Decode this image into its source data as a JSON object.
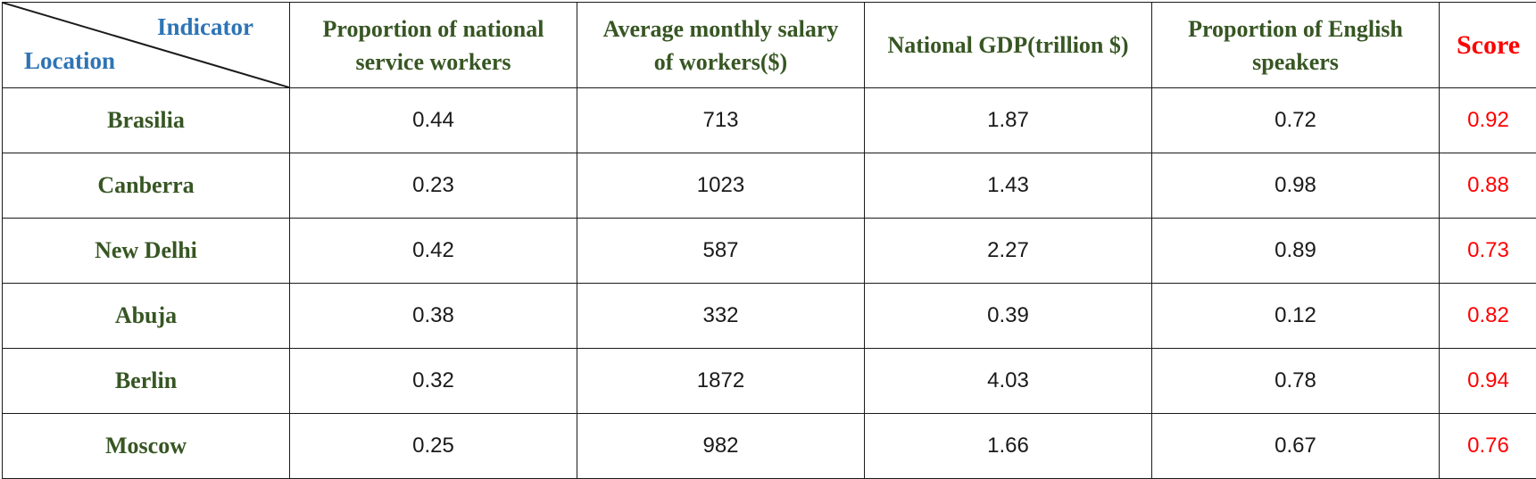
{
  "table": {
    "corner": {
      "top_label": "Indicator",
      "bottom_label": "Location"
    },
    "columns": [
      {
        "line1": "Proportion of national",
        "line2": "service workers"
      },
      {
        "line1": "Average monthly salary",
        "line2": "of workers($)"
      },
      {
        "line1": "National GDP(trillion $)",
        "line2": ""
      },
      {
        "line1": "Proportion of English",
        "line2": "speakers"
      }
    ],
    "score_header": "Score",
    "rows": [
      {
        "location": "Brasilia",
        "values": [
          "0.44",
          "713",
          "1.87",
          "0.72"
        ],
        "score": "0.92"
      },
      {
        "location": "Canberra",
        "values": [
          "0.23",
          "1023",
          "1.43",
          "0.98"
        ],
        "score": "0.88"
      },
      {
        "location": "New Delhi",
        "values": [
          "0.42",
          "587",
          "2.27",
          "0.89"
        ],
        "score": "0.73"
      },
      {
        "location": "Abuja",
        "values": [
          "0.38",
          "332",
          "0.39",
          "0.12"
        ],
        "score": "0.82"
      },
      {
        "location": "Berlin",
        "values": [
          "0.32",
          "1872",
          "4.03",
          "0.78"
        ],
        "score": "0.94"
      },
      {
        "location": "Moscow",
        "values": [
          "0.25",
          "982",
          "1.66",
          "0.67"
        ],
        "score": "0.76"
      }
    ],
    "colors": {
      "corner_text": "#2e74b5",
      "header_text": "#375623",
      "score_text": "#ff0000",
      "border": "#1a1a1a"
    }
  }
}
